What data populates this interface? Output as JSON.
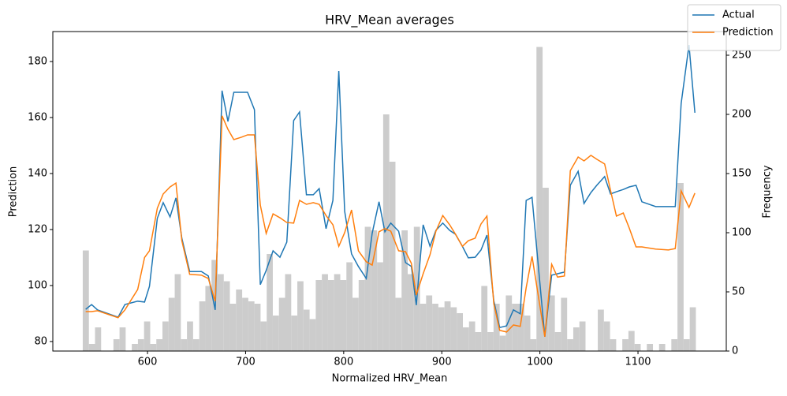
{
  "chart_data": {
    "type": "line",
    "title": "HRV_Mean averages",
    "xlabel": "Normalized HRV_Mean",
    "ylabel": "Prediction",
    "y2label": "Frequency",
    "x": [
      537,
      543,
      549,
      570,
      577,
      590,
      597,
      602,
      610,
      616,
      623,
      629,
      635,
      643,
      655,
      662,
      669,
      676,
      682,
      688,
      696,
      702,
      709,
      715,
      721,
      728,
      735,
      742,
      749,
      755,
      762,
      769,
      775,
      782,
      789,
      795,
      801,
      808,
      815,
      823,
      829,
      836,
      842,
      848,
      856,
      863,
      869,
      874,
      881,
      888,
      894,
      901,
      908,
      914,
      921,
      927,
      934,
      940,
      946,
      953,
      959,
      966,
      973,
      980,
      986,
      992,
      1005,
      1012,
      1018,
      1025,
      1031,
      1039,
      1045,
      1052,
      1058,
      1066,
      1072,
      1078,
      1085,
      1091,
      1098,
      1104,
      1118,
      1131,
      1138,
      1144,
      1152,
      1158
    ],
    "series": [
      {
        "name": "Actual",
        "color": "#1f77b4",
        "values": [
          91.5,
          93.2,
          91.3,
          88.7,
          93.2,
          94.4,
          94.1,
          99.7,
          124,
          129.6,
          124.5,
          131.3,
          116.9,
          105,
          105,
          103.4,
          91.3,
          169.6,
          158.6,
          169,
          169,
          169,
          162.8,
          100.3,
          105.4,
          112.4,
          110.1,
          115.5,
          158.9,
          162,
          132.4,
          132.4,
          134.6,
          120.3,
          130.4,
          176.6,
          126.5,
          111.3,
          106.8,
          102.5,
          118.6,
          129.9,
          119.2,
          122.3,
          119.4,
          108.2,
          106.8,
          93,
          121.7,
          114,
          119.7,
          122.3,
          119.7,
          118.3,
          114,
          109.9,
          110.1,
          112.7,
          118,
          94.6,
          85,
          85.6,
          91.3,
          89.9,
          130.4,
          131.5,
          81.7,
          103.7,
          104.2,
          104.8,
          135.8,
          140.8,
          129.3,
          133.2,
          135.8,
          138.9,
          132.7,
          133.5,
          134.3,
          135.2,
          135.8,
          129.9,
          128.2,
          128.2,
          128.2,
          165,
          185.9,
          161.7
        ]
      },
      {
        "name": "Prediction",
        "color": "#ff7f0e",
        "values": [
          90.7,
          90.7,
          91,
          88.5,
          91.3,
          98.6,
          110,
          112.4,
          127.6,
          132.7,
          135.2,
          136.6,
          116,
          104,
          103.7,
          102.5,
          94.4,
          160.6,
          155.8,
          152.1,
          153,
          153.8,
          153.8,
          128.7,
          118.6,
          125.6,
          124.2,
          122.5,
          122.3,
          130.4,
          129,
          129.6,
          129,
          125,
          121.7,
          114,
          118.9,
          127,
          112.4,
          108.5,
          107.3,
          119.2,
          120.3,
          119.4,
          112.4,
          112.1,
          107.9,
          96.6,
          104.2,
          111,
          119.4,
          125,
          121.7,
          118.3,
          114,
          116,
          116.9,
          122,
          124.8,
          93.5,
          84,
          83.4,
          85.9,
          85.4,
          99.2,
          110.4,
          81.7,
          107.6,
          103,
          103.4,
          141,
          145.9,
          144.5,
          146.5,
          145.1,
          143.4,
          134,
          124.8,
          125.9,
          120.6,
          113.8,
          113.8,
          113,
          112.7,
          113.2,
          133.8,
          127.9,
          133
        ]
      }
    ],
    "histogram": {
      "type": "histogram",
      "axis": "y2",
      "color": "#cccccc",
      "bins": [
        534,
        540.25,
        546.5,
        552.75,
        559,
        565.25,
        571.5,
        577.75,
        584,
        590.25,
        596.5,
        602.75,
        609,
        615.25,
        621.5,
        627.75,
        634,
        640.25,
        646.5,
        652.75,
        659,
        665.25,
        671.5,
        677.75,
        684,
        690.25,
        696.5,
        702.75,
        709,
        715.25,
        721.5,
        727.75,
        734,
        740.25,
        746.5,
        752.75,
        759,
        765.25,
        771.5,
        777.75,
        784,
        790.25,
        796.5,
        802.75,
        809,
        815.25,
        821.5,
        827.75,
        834,
        840.25,
        846.5,
        852.75,
        859,
        865.25,
        871.5,
        877.75,
        884,
        890.25,
        896.5,
        902.75,
        909,
        915.25,
        921.5,
        927.75,
        934,
        940.25,
        946.5,
        952.75,
        959,
        965.25,
        971.5,
        977.75,
        984,
        990.25,
        996.5,
        1002.75,
        1009,
        1015.25,
        1021.5,
        1027.75,
        1034,
        1040.25,
        1046.5,
        1052.75,
        1059,
        1065.25,
        1071.5,
        1077.75,
        1084,
        1090.25,
        1096.5,
        1102.75,
        1109,
        1115.25,
        1121.5,
        1127.75,
        1134,
        1140.25,
        1146.5,
        1152.75,
        1159
      ],
      "counts": [
        85,
        6,
        20,
        0,
        0,
        10,
        20,
        0,
        6,
        10,
        25,
        6,
        10,
        25,
        45,
        65,
        10,
        25,
        10,
        42,
        55,
        77,
        65,
        59,
        40,
        52,
        45,
        42,
        40,
        25,
        82,
        30,
        45,
        65,
        30,
        59,
        35,
        27,
        60,
        65,
        60,
        65,
        60,
        75,
        45,
        60,
        105,
        102,
        75,
        200,
        160,
        45,
        102,
        65,
        105,
        40,
        47,
        40,
        37,
        42,
        37,
        32,
        20,
        25,
        16,
        55,
        16,
        40,
        13,
        47,
        40,
        40,
        30,
        10,
        257,
        138,
        47,
        16,
        45,
        10,
        20,
        25,
        0,
        0,
        35,
        25,
        10,
        0,
        10,
        17,
        6,
        0,
        6,
        0,
        6,
        0,
        10,
        142,
        10,
        37
      ]
    },
    "xlim": [
      503.5,
      1190
    ],
    "ylim": [
      76.6,
      190.7
    ],
    "y2lim": [
      0,
      270
    ],
    "xticks": [
      600,
      700,
      800,
      900,
      1000,
      1100
    ],
    "yticks": [
      80,
      100,
      120,
      140,
      160,
      180
    ],
    "y2ticks": [
      0,
      50,
      100,
      150,
      200,
      250
    ],
    "legend": "upper right"
  }
}
